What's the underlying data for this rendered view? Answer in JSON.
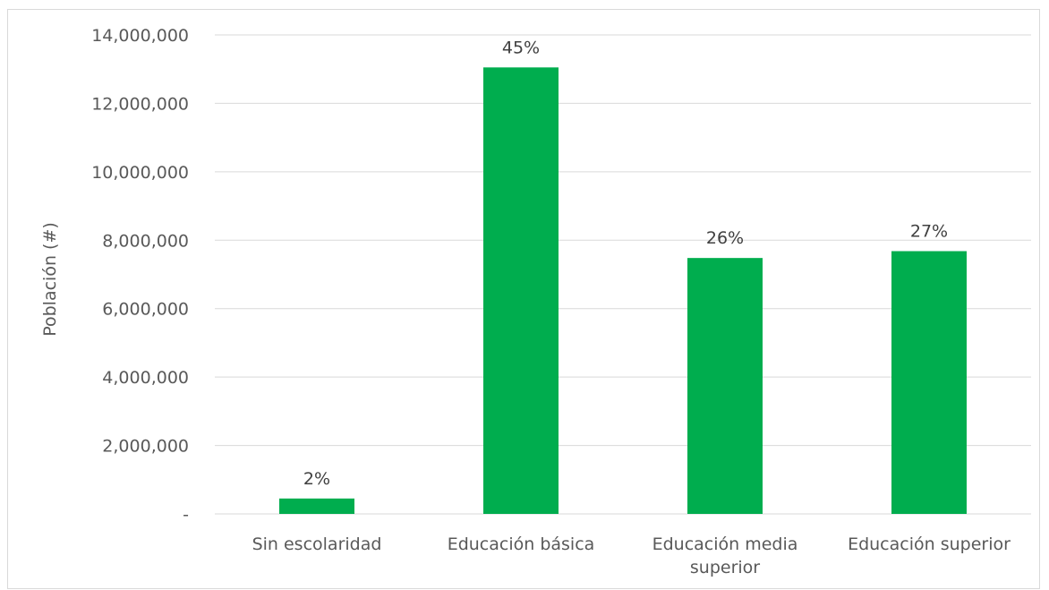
{
  "chart_data": {
    "type": "bar",
    "title": "",
    "xlabel": "",
    "ylabel": "Población (#)",
    "categories": [
      "Sin escolaridad",
      "Educación básica",
      "Educación media superior",
      "Educación superior"
    ],
    "category_lines": [
      [
        "Sin escolaridad"
      ],
      [
        "Educación básica"
      ],
      [
        "Educación media",
        "superior"
      ],
      [
        "Educación superior"
      ]
    ],
    "values": [
      450000,
      13050000,
      7480000,
      7680000
    ],
    "data_labels": [
      "2%",
      "45%",
      "26%",
      "27%"
    ],
    "ylim": [
      0,
      14000000
    ],
    "yticks": [
      0,
      2000000,
      4000000,
      6000000,
      8000000,
      10000000,
      12000000,
      14000000
    ],
    "ytick_labels": [
      "-",
      "2,000,000",
      "4,000,000",
      "6,000,000",
      "8,000,000",
      "10,000,000",
      "12,000,000",
      "14,000,000"
    ],
    "grid": true,
    "legend": "none",
    "bar_color": "#00ad4e"
  }
}
